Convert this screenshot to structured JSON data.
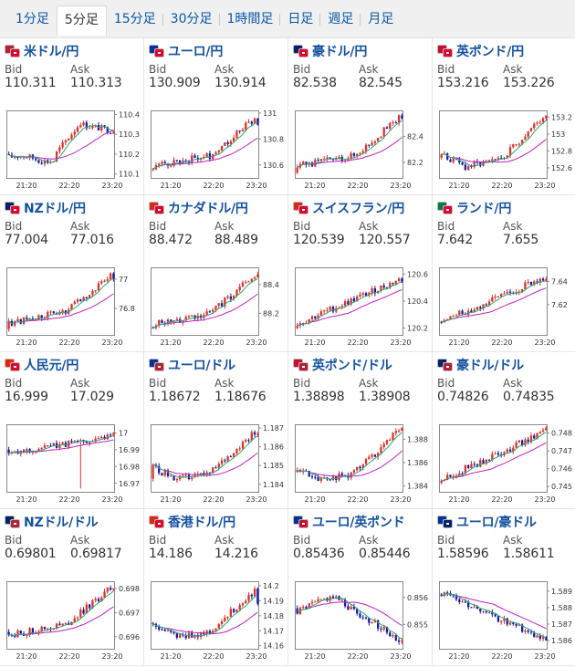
{
  "tabs": [
    {
      "label": "1分足",
      "active": false
    },
    {
      "label": "5分足",
      "active": true
    },
    {
      "label": "15分足",
      "active": false
    },
    {
      "label": "30分足",
      "active": false
    },
    {
      "label": "1時間足",
      "active": false
    },
    {
      "label": "日足",
      "active": false
    },
    {
      "label": "週足",
      "active": false
    },
    {
      "label": "月足",
      "active": false
    }
  ],
  "labels": {
    "bid": "Bid",
    "ask": "Ask"
  },
  "colors": {
    "up": "#e0302a",
    "down": "#1a1aa6",
    "ma_fast": "#2aa870",
    "ma_slow": "#c21fc2",
    "link": "#1552a0"
  },
  "x_ticks": [
    "21:20",
    "22:20",
    "23:20"
  ],
  "pairs": [
    {
      "name": "米ドル/円",
      "flags": [
        "#b22234",
        "#e4002b"
      ],
      "bid": "110.311",
      "ask": "110.313",
      "chart_data": {
        "type": "candlestick",
        "yticks": [
          "110.4",
          "110.3",
          "110.2",
          "110.1"
        ],
        "ylim": [
          110.08,
          110.42
        ],
        "open": 110.2,
        "close": 110.31,
        "high": 110.4,
        "low": 110.1,
        "shape": "rise_mid",
        "ma": true
      }
    },
    {
      "name": "ユーロ/円",
      "flags": [
        "#003399",
        "#e4002b"
      ],
      "bid": "130.909",
      "ask": "130.914",
      "chart_data": {
        "type": "candlestick",
        "yticks": [
          "131",
          "130.8",
          "130.6"
        ],
        "ylim": [
          130.5,
          131.02
        ],
        "open": 130.56,
        "close": 130.91,
        "high": 131.0,
        "low": 130.52,
        "shape": "rise_late",
        "ma": true
      }
    },
    {
      "name": "豪ドル/円",
      "flags": [
        "#012169",
        "#e4002b"
      ],
      "bid": "82.538",
      "ask": "82.545",
      "chart_data": {
        "type": "candlestick",
        "yticks": [
          "82.4",
          "82.2"
        ],
        "ylim": [
          82.08,
          82.6
        ],
        "open": 82.12,
        "close": 82.54,
        "high": 82.58,
        "low": 82.1,
        "shape": "rise_late",
        "ma": true
      }
    },
    {
      "name": "英ポンド/円",
      "flags": [
        "#c8102e",
        "#e4002b"
      ],
      "bid": "153.216",
      "ask": "153.226",
      "chart_data": {
        "type": "candlestick",
        "yticks": [
          "153.2",
          "153",
          "152.8",
          "152.6"
        ],
        "ylim": [
          152.48,
          153.28
        ],
        "open": 152.72,
        "close": 153.22,
        "high": 153.26,
        "low": 152.5,
        "shape": "dip_rise",
        "ma": true
      }
    },
    {
      "name": "NZドル/円",
      "flags": [
        "#012169",
        "#e4002b"
      ],
      "bid": "77.004",
      "ask": "77.016",
      "chart_data": {
        "type": "candlestick",
        "yticks": [
          "77",
          "76.8"
        ],
        "ylim": [
          76.62,
          77.08
        ],
        "open": 76.66,
        "close": 77.0,
        "high": 77.06,
        "low": 76.64,
        "shape": "rise_late",
        "ma": true
      }
    },
    {
      "name": "カナダドル/円",
      "flags": [
        "#d52b1e",
        "#e4002b"
      ],
      "bid": "88.472",
      "ask": "88.489",
      "chart_data": {
        "type": "candlestick",
        "yticks": [
          "88.4",
          "88.2"
        ],
        "ylim": [
          88.05,
          88.52
        ],
        "open": 88.1,
        "close": 88.47,
        "high": 88.5,
        "low": 88.06,
        "shape": "rise_late",
        "ma": true
      }
    },
    {
      "name": "スイスフラン/円",
      "flags": [
        "#d52b1e",
        "#e4002b"
      ],
      "bid": "120.539",
      "ask": "120.557",
      "chart_data": {
        "type": "candlestick",
        "yticks": [
          "120.6",
          "120.4",
          "120.2"
        ],
        "ylim": [
          120.15,
          120.65
        ],
        "open": 120.2,
        "close": 120.54,
        "high": 120.62,
        "low": 120.17,
        "shape": "rise_steady",
        "ma": true
      }
    },
    {
      "name": "ランド/円",
      "flags": [
        "#007a4d",
        "#e4002b"
      ],
      "bid": "7.642",
      "ask": "7.655",
      "chart_data": {
        "type": "candlestick",
        "yticks": [
          "7.64",
          "7.62"
        ],
        "ylim": [
          7.594,
          7.652
        ],
        "open": 7.605,
        "close": 7.642,
        "high": 7.65,
        "low": 7.598,
        "shape": "rise_steady",
        "ma": true
      }
    },
    {
      "name": "人民元/円",
      "flags": [
        "#de2910",
        "#e4002b"
      ],
      "bid": "16.999",
      "ask": "17.029",
      "chart_data": {
        "type": "candlestick",
        "yticks": [
          "17",
          "16.99",
          "16.98",
          "16.97"
        ],
        "ylim": [
          16.965,
          17.005
        ],
        "open": 16.99,
        "close": 17.0,
        "high": 17.003,
        "low": 16.967,
        "shape": "flat_spike",
        "ma": true
      }
    },
    {
      "name": "ユーロ/ドル",
      "flags": [
        "#003399",
        "#b22234"
      ],
      "bid": "1.18672",
      "ask": "1.18676",
      "chart_data": {
        "type": "candlestick",
        "yticks": [
          "1.187",
          "1.186",
          "1.185",
          "1.184"
        ],
        "ylim": [
          1.1836,
          1.1872
        ],
        "open": 1.1843,
        "close": 1.1867,
        "high": 1.1871,
        "low": 1.1838,
        "shape": "dip_rise",
        "ma": true
      }
    },
    {
      "name": "英ポンド/ドル",
      "flags": [
        "#c8102e",
        "#b22234"
      ],
      "bid": "1.38898",
      "ask": "1.38908",
      "chart_data": {
        "type": "candlestick",
        "yticks": [
          "1.388",
          "1.386",
          "1.384"
        ],
        "ylim": [
          1.3835,
          1.3893
        ],
        "open": 1.3852,
        "close": 1.389,
        "high": 1.3892,
        "low": 1.3838,
        "shape": "dip_rise",
        "ma": true
      }
    },
    {
      "name": "豪ドル/ドル",
      "flags": [
        "#012169",
        "#b22234"
      ],
      "bid": "0.74826",
      "ask": "0.74835",
      "chart_data": {
        "type": "candlestick",
        "yticks": [
          "0.748",
          "0.747",
          "0.746",
          "0.745"
        ],
        "ylim": [
          0.7447,
          0.7485
        ],
        "open": 0.7452,
        "close": 0.7483,
        "high": 0.7485,
        "low": 0.7449,
        "shape": "rise_steady",
        "ma": true
      }
    },
    {
      "name": "NZドル/ドル",
      "flags": [
        "#012169",
        "#b22234"
      ],
      "bid": "0.69801",
      "ask": "0.69817",
      "chart_data": {
        "type": "candlestick",
        "yticks": [
          "0.698",
          "0.697",
          "0.696"
        ],
        "ylim": [
          0.6955,
          0.6983
        ],
        "open": 0.6962,
        "close": 0.698,
        "high": 0.6982,
        "low": 0.6957,
        "shape": "rise_late",
        "ma": true
      }
    },
    {
      "name": "香港ドル/円",
      "flags": [
        "#de2910",
        "#e4002b"
      ],
      "bid": "14.186",
      "ask": "14.216",
      "chart_data": {
        "type": "candlestick",
        "yticks": [
          "14.2",
          "14.19",
          "14.18",
          "14.17",
          "14.16"
        ],
        "ylim": [
          14.158,
          14.203
        ],
        "open": 14.175,
        "close": 14.188,
        "high": 14.2,
        "low": 14.16,
        "shape": "dip_rise",
        "ma": true
      }
    },
    {
      "name": "ユーロ/英ポンド",
      "flags": [
        "#003399",
        "#c8102e"
      ],
      "bid": "0.85436",
      "ask": "0.85446",
      "chart_data": {
        "type": "candlestick",
        "yticks": [
          "0.856",
          "0.855"
        ],
        "ylim": [
          0.8541,
          0.8566
        ],
        "open": 0.8556,
        "close": 0.8544,
        "high": 0.8565,
        "low": 0.8542,
        "shape": "fall_late",
        "ma": true
      }
    },
    {
      "name": "ユーロ/豪ドル",
      "flags": [
        "#003399",
        "#012169"
      ],
      "bid": "1.58596",
      "ask": "1.58611",
      "chart_data": {
        "type": "candlestick",
        "yticks": [
          "1.589",
          "1.588",
          "1.587",
          "1.586"
        ],
        "ylim": [
          1.5855,
          1.5896
        ],
        "open": 1.5888,
        "close": 1.586,
        "high": 1.5894,
        "low": 1.5857,
        "shape": "fall_steady",
        "ma": true
      }
    }
  ]
}
